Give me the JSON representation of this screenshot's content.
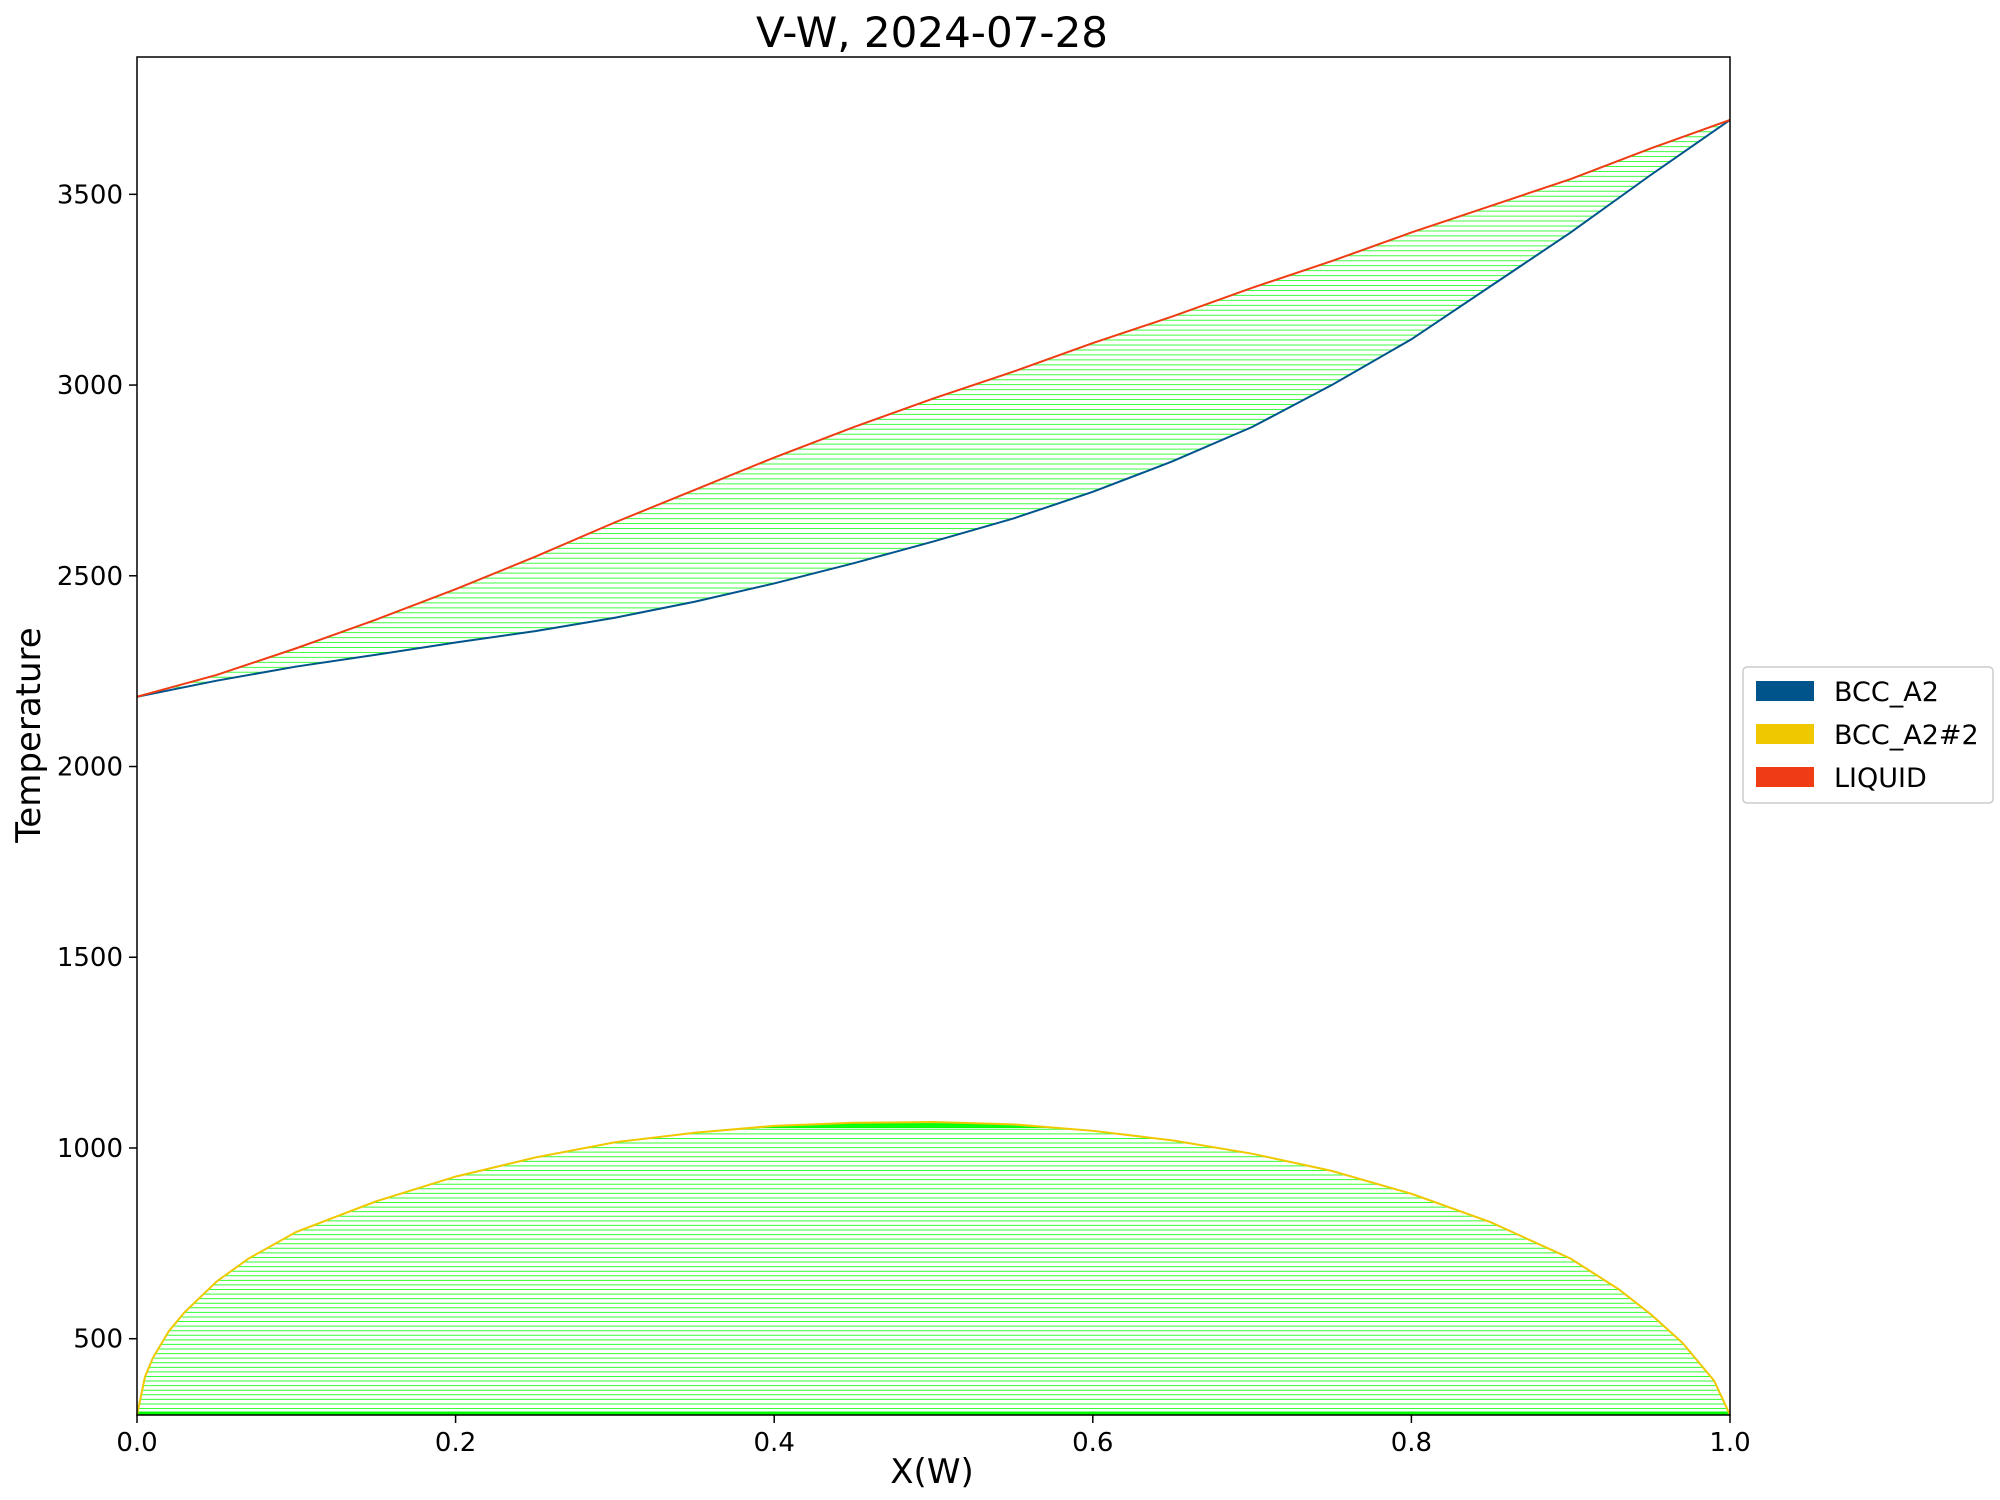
{
  "chart_data": {
    "type": "line",
    "title": "V-W, 2024-07-28",
    "xlabel": "X(W)",
    "ylabel": "Temperature",
    "xlim": [
      0.0,
      1.0
    ],
    "ylim": [
      300,
      3860
    ],
    "x_ticks": [
      0.0,
      0.2,
      0.4,
      0.6,
      0.8,
      1.0
    ],
    "x_tick_labels": [
      "0.0",
      "0.2",
      "0.4",
      "0.6",
      "0.8",
      "1.0"
    ],
    "y_ticks": [
      500,
      1000,
      1500,
      2000,
      2500,
      3000,
      3500
    ],
    "y_tick_labels": [
      "500",
      "1000",
      "1500",
      "2000",
      "2500",
      "3000",
      "3500"
    ],
    "grid": false,
    "legend": {
      "position": "right",
      "entries": [
        {
          "label": "BCC_A2",
          "color": "#00548c"
        },
        {
          "label": "BCC_A2#2",
          "color": "#f0c800"
        },
        {
          "label": "LIQUID",
          "color": "#f03c14"
        }
      ]
    },
    "tieline_color": "#00ff00",
    "series": [
      {
        "name": "BCC_A2",
        "color": "#00548c",
        "x": [
          0.0,
          0.05,
          0.1,
          0.15,
          0.2,
          0.25,
          0.3,
          0.35,
          0.4,
          0.45,
          0.5,
          0.55,
          0.6,
          0.65,
          0.7,
          0.75,
          0.8,
          0.85,
          0.9,
          0.95,
          1.0
        ],
        "y": [
          2183,
          2225,
          2262,
          2293,
          2325,
          2355,
          2390,
          2432,
          2480,
          2533,
          2590,
          2650,
          2720,
          2800,
          2890,
          3000,
          3120,
          3260,
          3400,
          3550,
          3695
        ]
      },
      {
        "name": "LIQUID",
        "color": "#f03c14",
        "x": [
          0.0,
          0.05,
          0.1,
          0.15,
          0.2,
          0.25,
          0.3,
          0.35,
          0.4,
          0.45,
          0.5,
          0.55,
          0.6,
          0.65,
          0.7,
          0.75,
          0.8,
          0.85,
          0.9,
          0.95,
          1.0
        ],
        "y": [
          2183,
          2240,
          2310,
          2385,
          2465,
          2550,
          2640,
          2725,
          2810,
          2890,
          2965,
          3035,
          3110,
          3180,
          3255,
          3325,
          3400,
          3470,
          3540,
          3620,
          3695
        ]
      },
      {
        "name": "BCC_A2#2",
        "color": "#f0c800",
        "x": [
          0.0,
          0.005,
          0.01,
          0.02,
          0.03,
          0.05,
          0.07,
          0.1,
          0.15,
          0.2,
          0.25,
          0.3,
          0.35,
          0.4,
          0.45,
          0.5,
          0.55,
          0.6,
          0.65,
          0.7,
          0.75,
          0.8,
          0.85,
          0.9,
          0.93,
          0.95,
          0.97,
          0.98,
          0.99,
          0.995,
          1.0
        ],
        "y": [
          300,
          400,
          450,
          520,
          570,
          650,
          710,
          780,
          860,
          925,
          975,
          1015,
          1040,
          1058,
          1066,
          1068,
          1062,
          1045,
          1020,
          985,
          940,
          880,
          805,
          710,
          630,
          565,
          490,
          440,
          390,
          345,
          300
        ]
      }
    ]
  }
}
